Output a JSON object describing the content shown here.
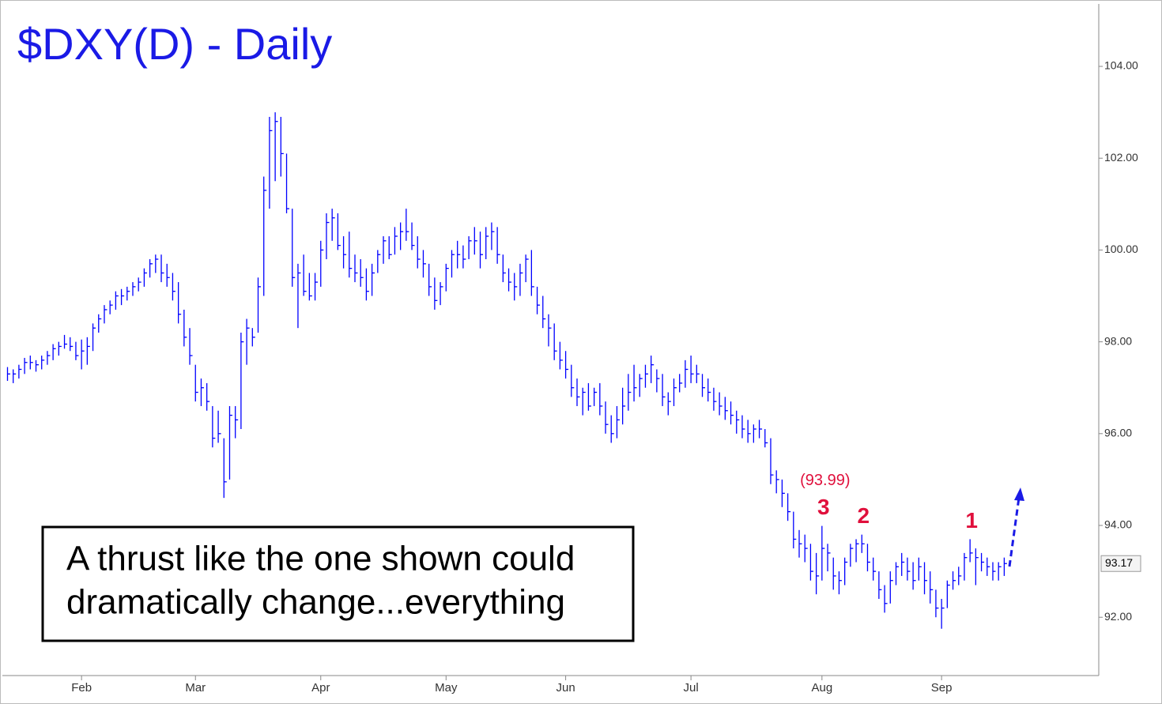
{
  "chart_data": {
    "type": "ohlc",
    "title": "$DXY(D) - Daily",
    "color": "#0000ff",
    "xlim": [
      -0.9,
      191.6
    ],
    "xticks": [
      {
        "value": 13,
        "label": "Feb"
      },
      {
        "value": 33,
        "label": "Mar"
      },
      {
        "value": 55,
        "label": "Apr"
      },
      {
        "value": 77,
        "label": "May"
      },
      {
        "value": 98,
        "label": "Jun"
      },
      {
        "value": 120,
        "label": "Jul"
      },
      {
        "value": 143,
        "label": "Aug"
      },
      {
        "value": 164,
        "label": "Sep"
      }
    ],
    "ylim": [
      90.73,
      105.36
    ],
    "yticks": [
      {
        "value": 92,
        "label": "92.00"
      },
      {
        "value": 94,
        "label": "94.00"
      },
      {
        "value": 96,
        "label": "96.00"
      },
      {
        "value": 98,
        "label": "98.00"
      },
      {
        "value": 100,
        "label": "100.00"
      },
      {
        "value": 102,
        "label": "102.00"
      },
      {
        "value": 104,
        "label": "104.00"
      }
    ],
    "high": [
      97.45,
      97.4,
      97.5,
      97.65,
      97.7,
      97.6,
      97.7,
      97.8,
      97.95,
      98.0,
      98.15,
      98.1,
      98.0,
      98.05,
      98.1,
      98.4,
      98.6,
      98.8,
      98.9,
      99.1,
      99.15,
      99.2,
      99.3,
      99.4,
      99.6,
      99.8,
      99.9,
      99.9,
      99.7,
      99.5,
      99.3,
      98.7,
      98.3,
      97.5,
      97.2,
      97.1,
      96.6,
      96.5,
      95.9,
      96.6,
      96.6,
      98.2,
      98.5,
      98.3,
      99.4,
      101.6,
      102.9,
      103.0,
      102.9,
      102.1,
      100.9,
      99.7,
      99.9,
      99.5,
      99.5,
      100.2,
      100.8,
      100.9,
      100.8,
      100.3,
      100.4,
      99.9,
      99.8,
      99.6,
      99.7,
      100.0,
      100.3,
      100.3,
      100.5,
      100.6,
      100.9,
      100.6,
      100.3,
      100.0,
      99.7,
      99.4,
      99.3,
      99.7,
      100.0,
      100.2,
      100.1,
      100.3,
      100.5,
      100.4,
      100.5,
      100.6,
      100.5,
      99.9,
      99.6,
      99.5,
      99.7,
      99.9,
      100.0,
      99.2,
      99.0,
      98.6,
      98.4,
      98.0,
      97.8,
      97.5,
      97.2,
      97.0,
      97.1,
      97.0,
      97.1,
      96.7,
      96.4,
      96.6,
      97.0,
      97.3,
      97.5,
      97.3,
      97.5,
      97.7,
      97.4,
      97.3,
      96.9,
      97.2,
      97.3,
      97.6,
      97.7,
      97.5,
      97.3,
      97.2,
      97.0,
      96.9,
      96.8,
      96.7,
      96.5,
      96.4,
      96.3,
      96.2,
      96.3,
      96.1,
      95.9,
      95.2,
      95.0,
      94.7,
      94.3,
      93.9,
      93.8,
      93.6,
      93.4,
      93.99,
      93.6,
      93.3,
      93.0,
      93.3,
      93.6,
      93.7,
      93.8,
      93.6,
      93.3,
      93.0,
      92.7,
      93.0,
      93.2,
      93.4,
      93.3,
      93.2,
      93.3,
      93.2,
      93.0,
      92.6,
      92.4,
      92.8,
      93.0,
      93.1,
      93.4,
      93.7,
      93.5,
      93.4,
      93.3,
      93.2,
      93.2,
      93.3
    ],
    "low": [
      97.15,
      97.1,
      97.2,
      97.3,
      97.4,
      97.35,
      97.4,
      97.5,
      97.6,
      97.7,
      97.85,
      97.8,
      97.6,
      97.4,
      97.5,
      97.8,
      98.2,
      98.4,
      98.6,
      98.7,
      98.8,
      98.9,
      99.0,
      99.1,
      99.2,
      99.4,
      99.5,
      99.3,
      99.2,
      98.9,
      98.4,
      97.9,
      97.5,
      96.7,
      96.6,
      96.5,
      95.7,
      95.8,
      94.6,
      95.0,
      95.9,
      96.1,
      97.5,
      97.9,
      98.2,
      99.0,
      100.9,
      101.5,
      101.6,
      100.8,
      99.2,
      98.3,
      99.0,
      98.9,
      98.9,
      99.2,
      99.8,
      100.2,
      100.0,
      99.6,
      99.4,
      99.3,
      99.2,
      98.9,
      99.0,
      99.5,
      99.7,
      99.8,
      99.9,
      100.0,
      100.2,
      100.0,
      99.6,
      99.4,
      99.0,
      98.7,
      98.8,
      99.1,
      99.4,
      99.6,
      99.6,
      99.8,
      99.9,
      99.6,
      99.8,
      100.0,
      99.7,
      99.3,
      99.1,
      98.9,
      99.0,
      99.3,
      99.0,
      98.6,
      98.3,
      97.9,
      97.6,
      97.4,
      97.2,
      96.8,
      96.6,
      96.4,
      96.5,
      96.6,
      96.4,
      96.0,
      95.8,
      95.9,
      96.2,
      96.5,
      96.7,
      96.8,
      97.0,
      97.1,
      96.9,
      96.6,
      96.4,
      96.6,
      96.9,
      97.0,
      97.1,
      97.1,
      96.8,
      96.7,
      96.5,
      96.4,
      96.3,
      96.2,
      96.0,
      95.9,
      95.8,
      95.8,
      95.9,
      95.7,
      94.9,
      94.7,
      94.4,
      94.1,
      93.5,
      93.3,
      93.2,
      92.8,
      92.5,
      92.8,
      93.0,
      92.6,
      92.5,
      92.7,
      93.1,
      93.2,
      93.4,
      93.0,
      92.8,
      92.4,
      92.1,
      92.3,
      92.7,
      92.9,
      92.8,
      92.6,
      92.8,
      92.5,
      92.3,
      92.0,
      91.75,
      92.2,
      92.6,
      92.7,
      92.8,
      93.2,
      92.7,
      93.0,
      92.9,
      92.8,
      92.8,
      92.9
    ],
    "close": [
      97.3,
      97.3,
      97.4,
      97.55,
      97.55,
      97.5,
      97.6,
      97.7,
      97.85,
      97.9,
      97.95,
      97.9,
      97.7,
      97.8,
      97.9,
      98.3,
      98.5,
      98.7,
      98.8,
      99.0,
      99.0,
      99.1,
      99.2,
      99.3,
      99.5,
      99.7,
      99.8,
      99.5,
      99.4,
      99.1,
      98.6,
      98.1,
      97.7,
      96.9,
      97.0,
      96.7,
      95.9,
      96.0,
      94.95,
      96.4,
      96.3,
      98.0,
      98.3,
      98.1,
      99.2,
      101.3,
      102.6,
      102.8,
      102.1,
      100.9,
      99.4,
      99.5,
      99.1,
      99.0,
      99.3,
      100.0,
      100.6,
      100.7,
      100.1,
      99.9,
      99.6,
      99.5,
      99.4,
      99.1,
      99.5,
      99.9,
      100.2,
      99.9,
      100.3,
      100.4,
      100.4,
      100.1,
      99.8,
      99.7,
      99.2,
      98.9,
      99.2,
      99.6,
      99.9,
      99.9,
      99.8,
      100.2,
      100.2,
      99.9,
      100.3,
      100.4,
      99.9,
      99.5,
      99.3,
      99.2,
      99.5,
      99.8,
      99.2,
      98.8,
      98.5,
      98.3,
      97.8,
      97.6,
      97.4,
      97.0,
      96.8,
      96.9,
      96.6,
      96.9,
      96.6,
      96.2,
      96.0,
      96.3,
      96.6,
      96.9,
      97.0,
      97.2,
      97.3,
      97.5,
      97.2,
      96.8,
      96.7,
      97.0,
      97.1,
      97.4,
      97.3,
      97.3,
      97.0,
      96.9,
      96.7,
      96.6,
      96.5,
      96.4,
      96.3,
      96.1,
      96.0,
      96.1,
      96.1,
      95.8,
      95.1,
      95.0,
      94.7,
      94.3,
      93.7,
      93.6,
      93.5,
      93.0,
      92.9,
      93.5,
      93.4,
      92.9,
      92.8,
      93.2,
      93.5,
      93.6,
      93.6,
      93.2,
      93.0,
      92.6,
      92.3,
      92.8,
      93.1,
      93.2,
      93.0,
      92.8,
      93.1,
      92.8,
      92.6,
      92.2,
      92.2,
      92.7,
      92.8,
      92.9,
      93.3,
      93.4,
      93.3,
      93.2,
      93.1,
      93.0,
      93.1,
      93.17
    ],
    "annotations": [
      {
        "text": "3",
        "bar": 143
      },
      {
        "text": "2",
        "bar": 150
      },
      {
        "text": "1",
        "bar": 169
      }
    ],
    "target": {
      "value": 93.99,
      "label": "(93.99)",
      "bar": 143
    },
    "note": [
      "A thrust like the one shown could",
      "dramatically change...everything"
    ]
  }
}
